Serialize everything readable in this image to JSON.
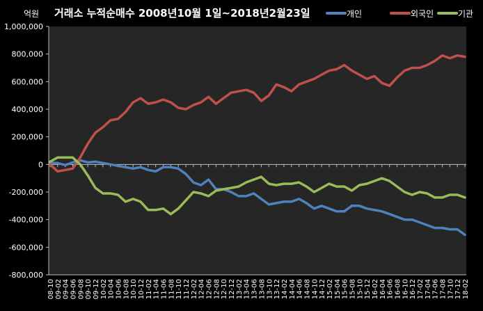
{
  "chart_data": {
    "type": "line",
    "title": "거래소 누적순매수 2008년10월 1일~2018년2월23일",
    "ylabel": "억원",
    "ylim": [
      -800000,
      1000000
    ],
    "yticks": [
      1000000,
      800000,
      600000,
      400000,
      200000,
      0,
      -200000,
      -400000,
      -600000,
      -800000
    ],
    "ytick_labels": [
      "1,000,000",
      "800,000",
      "600,000",
      "400,000",
      "200,000",
      "0",
      "-200,000",
      "-400,000",
      "-600,000",
      "-800,000"
    ],
    "x": [
      "08-10",
      "09-02",
      "09-04",
      "09-06",
      "09-08",
      "09-10",
      "09-12",
      "10-02",
      "10-04",
      "10-06",
      "10-08",
      "10-10",
      "10-12",
      "11-02",
      "11-04",
      "11-06",
      "11-08",
      "11-10",
      "11-12",
      "12-02",
      "12-04",
      "12-06",
      "12-08",
      "12-10",
      "12-12",
      "13-02",
      "13-04",
      "13-06",
      "13-08",
      "13-10",
      "13-12",
      "14-02",
      "14-04",
      "14-06",
      "14-08",
      "14-10",
      "14-12",
      "15-02",
      "15-04",
      "15-06",
      "15-08",
      "15-10",
      "15-12",
      "16-02",
      "16-04",
      "16-06",
      "16-08",
      "16-10",
      "16-12",
      "17-02",
      "17-04",
      "17-06",
      "17-08",
      "17-10",
      "17-12",
      "18-02"
    ],
    "legend_position": "top-right",
    "grid": false,
    "series": [
      {
        "name": "개인",
        "color": "#4F81BD",
        "values": [
          10000,
          10000,
          -5000,
          15000,
          30000,
          15000,
          20000,
          10000,
          0,
          -10000,
          -20000,
          -30000,
          -20000,
          -40000,
          -50000,
          -20000,
          -20000,
          -30000,
          -70000,
          -130000,
          -150000,
          -110000,
          -180000,
          -180000,
          -200000,
          -230000,
          -230000,
          -210000,
          -250000,
          -290000,
          -280000,
          -270000,
          -270000,
          -250000,
          -280000,
          -320000,
          -300000,
          -320000,
          -340000,
          -340000,
          -300000,
          -300000,
          -320000,
          -330000,
          -340000,
          -360000,
          -380000,
          -400000,
          -400000,
          -420000,
          -440000,
          -460000,
          -460000,
          -470000,
          -470000,
          -510000
        ]
      },
      {
        "name": "외국인",
        "color": "#C0504D",
        "values": [
          0,
          -50000,
          -40000,
          -30000,
          50000,
          150000,
          230000,
          270000,
          320000,
          330000,
          380000,
          450000,
          480000,
          440000,
          450000,
          470000,
          450000,
          410000,
          400000,
          430000,
          450000,
          490000,
          440000,
          480000,
          520000,
          530000,
          540000,
          520000,
          460000,
          500000,
          580000,
          560000,
          530000,
          580000,
          600000,
          620000,
          650000,
          680000,
          690000,
          720000,
          680000,
          650000,
          620000,
          640000,
          590000,
          570000,
          630000,
          680000,
          700000,
          700000,
          720000,
          750000,
          790000,
          770000,
          790000,
          780000
        ]
      },
      {
        "name": "기관",
        "color": "#9BBB59",
        "values": [
          20000,
          50000,
          50000,
          50000,
          0,
          -80000,
          -170000,
          -210000,
          -210000,
          -220000,
          -270000,
          -250000,
          -270000,
          -330000,
          -330000,
          -320000,
          -360000,
          -320000,
          -260000,
          -200000,
          -210000,
          -230000,
          -190000,
          -180000,
          -170000,
          -160000,
          -130000,
          -110000,
          -90000,
          -140000,
          -150000,
          -140000,
          -140000,
          -130000,
          -160000,
          -200000,
          -170000,
          -140000,
          -160000,
          -160000,
          -190000,
          -150000,
          -140000,
          -120000,
          -100000,
          -120000,
          -160000,
          -200000,
          -220000,
          -200000,
          -210000,
          -240000,
          -240000,
          -220000,
          -220000,
          -240000
        ]
      }
    ]
  }
}
